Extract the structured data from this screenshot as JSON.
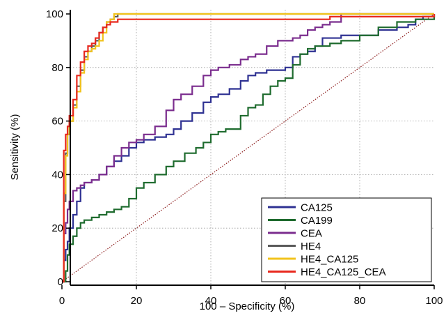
{
  "chart_data": {
    "type": "line",
    "title": "",
    "xlabel": "100 – Specificity (%)",
    "ylabel": "Sensitivity (%)",
    "xlim": [
      0,
      100
    ],
    "ylim": [
      0,
      100
    ],
    "x_ticks": [
      "0",
      "20",
      "40",
      "60",
      "80",
      "100"
    ],
    "y_ticks": [
      "0",
      "20",
      "40",
      "60",
      "80",
      "100"
    ],
    "grid": true,
    "legend_position": "bottom-right",
    "reference_line": {
      "color": "#8b1a1a",
      "style": "dotted"
    },
    "series": [
      {
        "name": "CA125",
        "color": "#2e3192",
        "x": [
          0,
          0.5,
          1,
          1.5,
          2,
          3,
          4,
          5,
          6,
          8,
          10,
          12,
          14,
          16,
          18,
          20,
          22,
          25,
          28,
          30,
          32,
          35,
          38,
          40,
          42,
          45,
          48,
          50,
          52,
          55,
          58,
          60,
          62,
          64,
          66,
          68,
          70,
          75,
          80,
          85,
          90,
          93,
          95,
          97,
          100
        ],
        "y": [
          0,
          8,
          12,
          15,
          20,
          25,
          30,
          35,
          37,
          38,
          40,
          43,
          45,
          47,
          50,
          52,
          53,
          54,
          55,
          57,
          60,
          63,
          67,
          69,
          70,
          72,
          75,
          77,
          78,
          79,
          79,
          80,
          84,
          85,
          86,
          88,
          91,
          92,
          92,
          94,
          95,
          96,
          98,
          99,
          100
        ]
      },
      {
        "name": "CA199",
        "color": "#1e6b2e",
        "x": [
          0,
          1,
          1.5,
          2,
          3,
          4,
          5,
          6,
          8,
          10,
          12,
          14,
          16,
          18,
          20,
          22,
          25,
          28,
          30,
          33,
          36,
          38,
          40,
          42,
          44,
          46,
          48,
          50,
          52,
          54,
          56,
          58,
          60,
          62,
          64,
          66,
          68,
          70,
          72,
          75,
          78,
          80,
          85,
          90,
          95,
          100
        ],
        "y": [
          0,
          4,
          10,
          14,
          17,
          20,
          22,
          23,
          24,
          25,
          26,
          27,
          28,
          31,
          35,
          37,
          40,
          43,
          45,
          48,
          50,
          52,
          55,
          56,
          57,
          57,
          62,
          65,
          66,
          70,
          73,
          75,
          76,
          81,
          85,
          87,
          88,
          88,
          89,
          90,
          90,
          92,
          95,
          97,
          98,
          100
        ]
      },
      {
        "name": "CEA",
        "color": "#7b2d8e",
        "x": [
          0,
          0.5,
          1,
          1.5,
          2,
          3,
          4,
          5,
          6,
          8,
          10,
          12,
          14,
          16,
          18,
          20,
          22,
          25,
          28,
          30,
          32,
          35,
          38,
          40,
          42,
          45,
          48,
          50,
          52,
          55,
          58,
          60,
          62,
          64,
          66,
          68,
          70,
          72,
          75,
          80,
          90,
          100
        ],
        "y": [
          0,
          18,
          22,
          27,
          30,
          34,
          35,
          36,
          37,
          38,
          40,
          43,
          47,
          50,
          52,
          53,
          55,
          58,
          64,
          68,
          70,
          73,
          77,
          79,
          80,
          81,
          83,
          84,
          85,
          88,
          90,
          90,
          91,
          92,
          94,
          95,
          96,
          97,
          100,
          100,
          100,
          100
        ]
      },
      {
        "name": "HE4",
        "color": "#5a5a5a",
        "x": [
          0,
          0.5,
          1,
          1.5,
          2,
          3,
          4,
          5,
          6,
          7,
          8,
          9,
          10,
          11,
          12,
          13,
          14,
          15,
          20,
          40,
          60,
          80,
          100
        ],
        "y": [
          0,
          30,
          48,
          55,
          60,
          66,
          73,
          79,
          84,
          86,
          88,
          90,
          93,
          95,
          97,
          98,
          99,
          100,
          100,
          100,
          100,
          100,
          100
        ]
      },
      {
        "name": "HE4_CA125",
        "color": "#f2c31c",
        "x": [
          0,
          0.5,
          1,
          1.5,
          2,
          3,
          4,
          5,
          6,
          7,
          8,
          9,
          10,
          11,
          12,
          13,
          14,
          20,
          40,
          60,
          80,
          100
        ],
        "y": [
          0,
          33,
          47,
          55,
          60,
          65,
          71,
          78,
          83,
          86,
          87,
          88,
          90,
          93,
          97,
          98,
          100,
          100,
          100,
          100,
          100,
          100
        ]
      },
      {
        "name": "HE4_CA125_CEA",
        "color": "#e8281e",
        "x": [
          0,
          0.5,
          1,
          1.5,
          2,
          3,
          4,
          5,
          6,
          7,
          8,
          9,
          10,
          11,
          12,
          13,
          14,
          15,
          16,
          20,
          30,
          40,
          50,
          60,
          70,
          72,
          75,
          80,
          90,
          98,
          99,
          100
        ],
        "y": [
          0,
          49,
          55,
          58,
          62,
          68,
          77,
          82,
          86,
          88,
          89,
          91,
          93,
          95,
          96,
          97,
          97,
          98,
          98,
          98,
          98,
          98,
          98,
          98,
          98,
          99,
          99,
          99,
          99,
          99,
          99,
          100
        ]
      }
    ]
  }
}
